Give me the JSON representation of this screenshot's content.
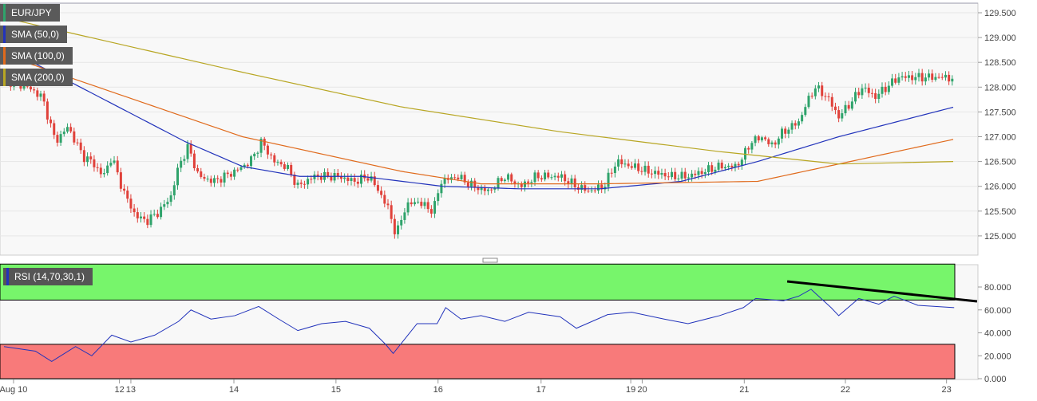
{
  "legend": {
    "symbol": "EUR/JPY",
    "sma50": "SMA (50,0)",
    "sma100": "SMA (100,0)",
    "sma200": "SMA (200,0)",
    "rsi": "RSI (14,70,30,1)"
  },
  "colors": {
    "up": "#2fa36b",
    "down": "#e0413a",
    "sma50": "#2233bb",
    "sma100": "#e06a1c",
    "sma200": "#b8a623",
    "overbought": "#77f56b",
    "oversold": "#f87a7a",
    "rsi": "#2233bb"
  },
  "chart_data": [
    {
      "type": "candlestick",
      "title": "EUR/JPY",
      "ylim": [
        124.6,
        129.7
      ],
      "yticks": [
        "129.500",
        "129.000",
        "128.500",
        "128.000",
        "127.500",
        "127.000",
        "126.500",
        "126.000",
        "125.500",
        "125.000"
      ],
      "ytick_values": [
        129.5,
        129,
        128.5,
        128,
        127.5,
        127,
        126.5,
        126,
        125.5,
        125
      ],
      "xticks": [
        {
          "t": 1,
          "label": "Aug 10"
        },
        {
          "t": 12.1,
          "label": "12"
        },
        {
          "t": 13.3,
          "label": "13"
        },
        {
          "t": 24.1,
          "label": "14"
        },
        {
          "t": 34.8,
          "label": "15"
        },
        {
          "t": 45.5,
          "label": "16"
        },
        {
          "t": 56.3,
          "label": "17"
        },
        {
          "t": 65.7,
          "label": "19"
        },
        {
          "t": 66.9,
          "label": "20"
        },
        {
          "t": 77.6,
          "label": "21"
        },
        {
          "t": 88.2,
          "label": "22"
        },
        {
          "t": 98.8,
          "label": "23"
        }
      ],
      "price_path": [
        [
          0,
          128.15
        ],
        [
          2.5,
          128.0
        ],
        [
          4,
          127.8
        ],
        [
          5.4,
          126.9
        ],
        [
          6.7,
          127.2
        ],
        [
          8.3,
          126.6
        ],
        [
          9.2,
          126.5
        ],
        [
          10.4,
          126.2
        ],
        [
          11.3,
          126.6
        ],
        [
          12.5,
          125.9
        ],
        [
          13.8,
          125.4
        ],
        [
          15,
          125.3
        ],
        [
          16.3,
          125.5
        ],
        [
          17.5,
          125.8
        ],
        [
          18.3,
          126.4
        ],
        [
          19.3,
          126.8
        ],
        [
          20.4,
          126.2
        ],
        [
          22,
          126.1
        ],
        [
          24.2,
          126.3
        ],
        [
          25.8,
          126.5
        ],
        [
          27,
          126.9
        ],
        [
          28.3,
          126.5
        ],
        [
          29.6,
          126.4
        ],
        [
          30.8,
          126.0
        ],
        [
          32.5,
          126.2
        ],
        [
          35,
          126.2
        ],
        [
          36.7,
          126.1
        ],
        [
          38.3,
          126.2
        ],
        [
          39.6,
          125.8
        ],
        [
          40.4,
          125.5
        ],
        [
          41.1,
          125.0
        ],
        [
          42.1,
          125.6
        ],
        [
          43.3,
          125.7
        ],
        [
          45,
          125.5
        ],
        [
          45.8,
          126.1
        ],
        [
          47.5,
          126.2
        ],
        [
          49.2,
          126.0
        ],
        [
          50.8,
          125.9
        ],
        [
          52.5,
          126.2
        ],
        [
          54.2,
          126.0
        ],
        [
          55.8,
          126.2
        ],
        [
          58.3,
          126.2
        ],
        [
          60,
          126.0
        ],
        [
          61.3,
          125.9
        ],
        [
          62.9,
          126.0
        ],
        [
          64.2,
          126.5
        ],
        [
          65.8,
          126.4
        ],
        [
          67.5,
          126.3
        ],
        [
          70,
          126.2
        ],
        [
          71.7,
          126.2
        ],
        [
          73.3,
          126.3
        ],
        [
          75,
          126.4
        ],
        [
          76.7,
          126.4
        ],
        [
          77.5,
          126.6
        ],
        [
          78.3,
          126.9
        ],
        [
          79.6,
          127.0
        ],
        [
          80.4,
          126.8
        ],
        [
          81.7,
          127.1
        ],
        [
          83.3,
          127.3
        ],
        [
          84.2,
          127.7
        ],
        [
          85,
          128.0
        ],
        [
          86.3,
          127.8
        ],
        [
          87.5,
          127.4
        ],
        [
          88.8,
          127.7
        ],
        [
          90,
          128.0
        ],
        [
          91.3,
          127.8
        ],
        [
          92.5,
          128.0
        ],
        [
          93.8,
          128.2
        ],
        [
          95.4,
          128.2
        ],
        [
          97.1,
          128.2
        ],
        [
          98.8,
          128.2
        ],
        [
          99.6,
          128.15
        ]
      ],
      "series": [
        {
          "name": "SMA (50,0)",
          "points": [
            [
              0,
              128.8
            ],
            [
              19,
              126.9
            ],
            [
              25,
              126.4
            ],
            [
              31,
              126.2
            ],
            [
              37.5,
              126.2
            ],
            [
              46,
              126.0
            ],
            [
              54,
              125.95
            ],
            [
              62.5,
              125.95
            ],
            [
              71,
              126.1
            ],
            [
              79,
              126.5
            ],
            [
              87.5,
              127.0
            ],
            [
              99.6,
              127.6
            ]
          ]
        },
        {
          "name": "SMA (100,0)",
          "points": [
            [
              0,
              128.65
            ],
            [
              25,
              127.0
            ],
            [
              41.7,
              126.3
            ],
            [
              50,
              126.05
            ],
            [
              62.5,
              126.05
            ],
            [
              79,
              126.1
            ],
            [
              87.5,
              126.45
            ],
            [
              99.6,
              126.95
            ]
          ]
        },
        {
          "name": "SMA (200,0)",
          "points": [
            [
              0,
              129.4
            ],
            [
              25,
              128.3
            ],
            [
              41.7,
              127.6
            ],
            [
              58.3,
              127.1
            ],
            [
              75,
              126.7
            ],
            [
              87.5,
              126.45
            ],
            [
              99.6,
              126.5
            ]
          ]
        }
      ]
    },
    {
      "type": "line",
      "title": "RSI (14,70,30,1)",
      "ylim": [
        0,
        100
      ],
      "overbought": 70,
      "oversold": 30,
      "yticks": [
        "80.000",
        "60.000",
        "40.000",
        "20.000",
        "0.000"
      ],
      "ytick_values": [
        80,
        60,
        40,
        20,
        0
      ],
      "values": [
        [
          0,
          28
        ],
        [
          3.3,
          24
        ],
        [
          5,
          15
        ],
        [
          7.5,
          28
        ],
        [
          9.2,
          20
        ],
        [
          11.3,
          38
        ],
        [
          13.3,
          32
        ],
        [
          15.8,
          38
        ],
        [
          18.3,
          50
        ],
        [
          19.6,
          60
        ],
        [
          21.7,
          52
        ],
        [
          24.2,
          55
        ],
        [
          26.7,
          63
        ],
        [
          28.8,
          52
        ],
        [
          30.8,
          42
        ],
        [
          33.3,
          48
        ],
        [
          35.8,
          50
        ],
        [
          38.3,
          44
        ],
        [
          40,
          30
        ],
        [
          40.8,
          22
        ],
        [
          43.3,
          48
        ],
        [
          45.4,
          48
        ],
        [
          46.3,
          62
        ],
        [
          47.9,
          52
        ],
        [
          50,
          55
        ],
        [
          52.5,
          50
        ],
        [
          55,
          58
        ],
        [
          58.3,
          54
        ],
        [
          60,
          44
        ],
        [
          63.3,
          56
        ],
        [
          65.8,
          58
        ],
        [
          69.2,
          52
        ],
        [
          71.7,
          48
        ],
        [
          75,
          55
        ],
        [
          77.5,
          62
        ],
        [
          78.8,
          70
        ],
        [
          81.7,
          68
        ],
        [
          83.3,
          72
        ],
        [
          84.6,
          78
        ],
        [
          86.7,
          62
        ],
        [
          87.5,
          55
        ],
        [
          89.6,
          70
        ],
        [
          91.7,
          65
        ],
        [
          93.3,
          72
        ],
        [
          95.8,
          64
        ],
        [
          99.6,
          62
        ]
      ],
      "trendline": [
        [
          82.1,
          84.9
        ],
        [
          102,
          67.5
        ]
      ]
    }
  ]
}
